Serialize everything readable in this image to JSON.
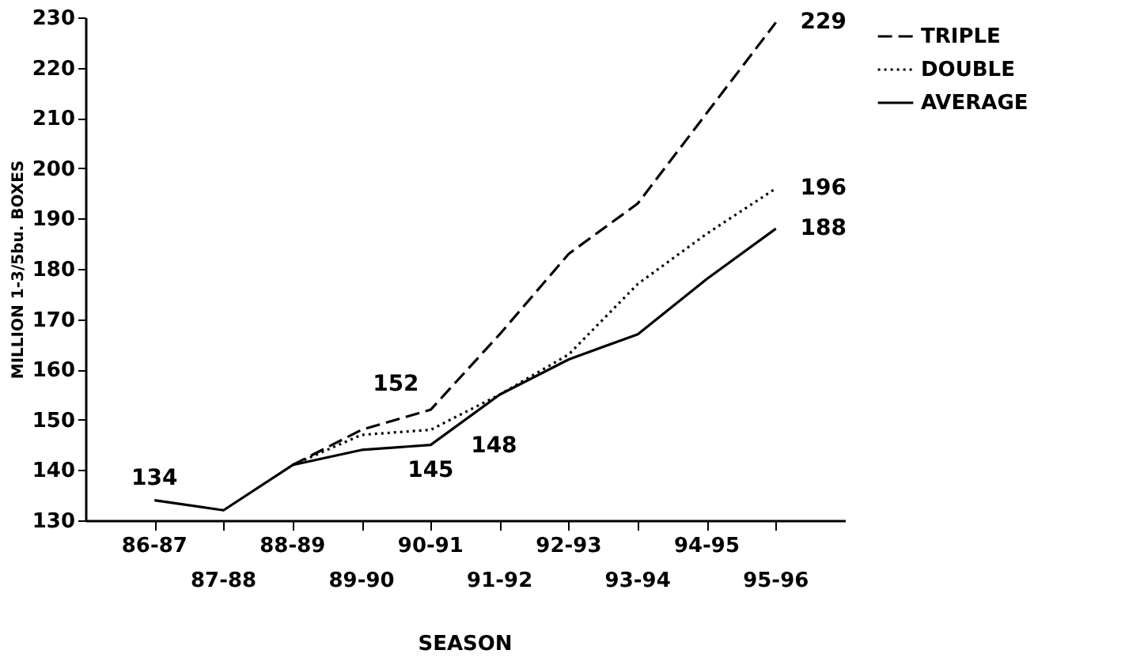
{
  "chart_data": {
    "type": "line",
    "xlabel": "SEASON",
    "ylabel": "MILLION 1-3/5bu. BOXES",
    "categories": [
      "86-87",
      "87-88",
      "88-89",
      "89-90",
      "90-91",
      "91-92",
      "92-93",
      "93-94",
      "94-95",
      "95-96"
    ],
    "series": [
      {
        "name": "TRIPLE",
        "color": "#000000",
        "line_style": "dashed",
        "values": [
          null,
          null,
          141,
          148,
          152,
          167,
          183,
          193,
          211,
          229
        ]
      },
      {
        "name": "DOUBLE",
        "color": "#000000",
        "line_style": "dotted",
        "values": [
          null,
          null,
          141,
          147,
          148,
          155,
          163,
          177,
          187,
          196
        ]
      },
      {
        "name": "AVERAGE",
        "color": "#000000",
        "line_style": "solid",
        "values": [
          134,
          132,
          141,
          144,
          145,
          155,
          162,
          167,
          178,
          188
        ]
      }
    ],
    "ylim": [
      130,
      230
    ],
    "yticks": [
      130,
      140,
      150,
      160,
      170,
      180,
      190,
      200,
      210,
      220,
      230
    ],
    "annotations": [
      {
        "text": "134",
        "x": "86-87",
        "y": 134
      },
      {
        "text": "152",
        "x": "90-91",
        "y": 152
      },
      {
        "text": "148",
        "x": "90-91",
        "y": 148
      },
      {
        "text": "145",
        "x": "90-91",
        "y": 145
      },
      {
        "text": "229",
        "x": "95-96",
        "y": 229
      },
      {
        "text": "196",
        "x": "95-96",
        "y": 196
      },
      {
        "text": "188",
        "x": "95-96",
        "y": 188
      }
    ],
    "legend": "top right",
    "grid": false,
    "marker": "none"
  }
}
